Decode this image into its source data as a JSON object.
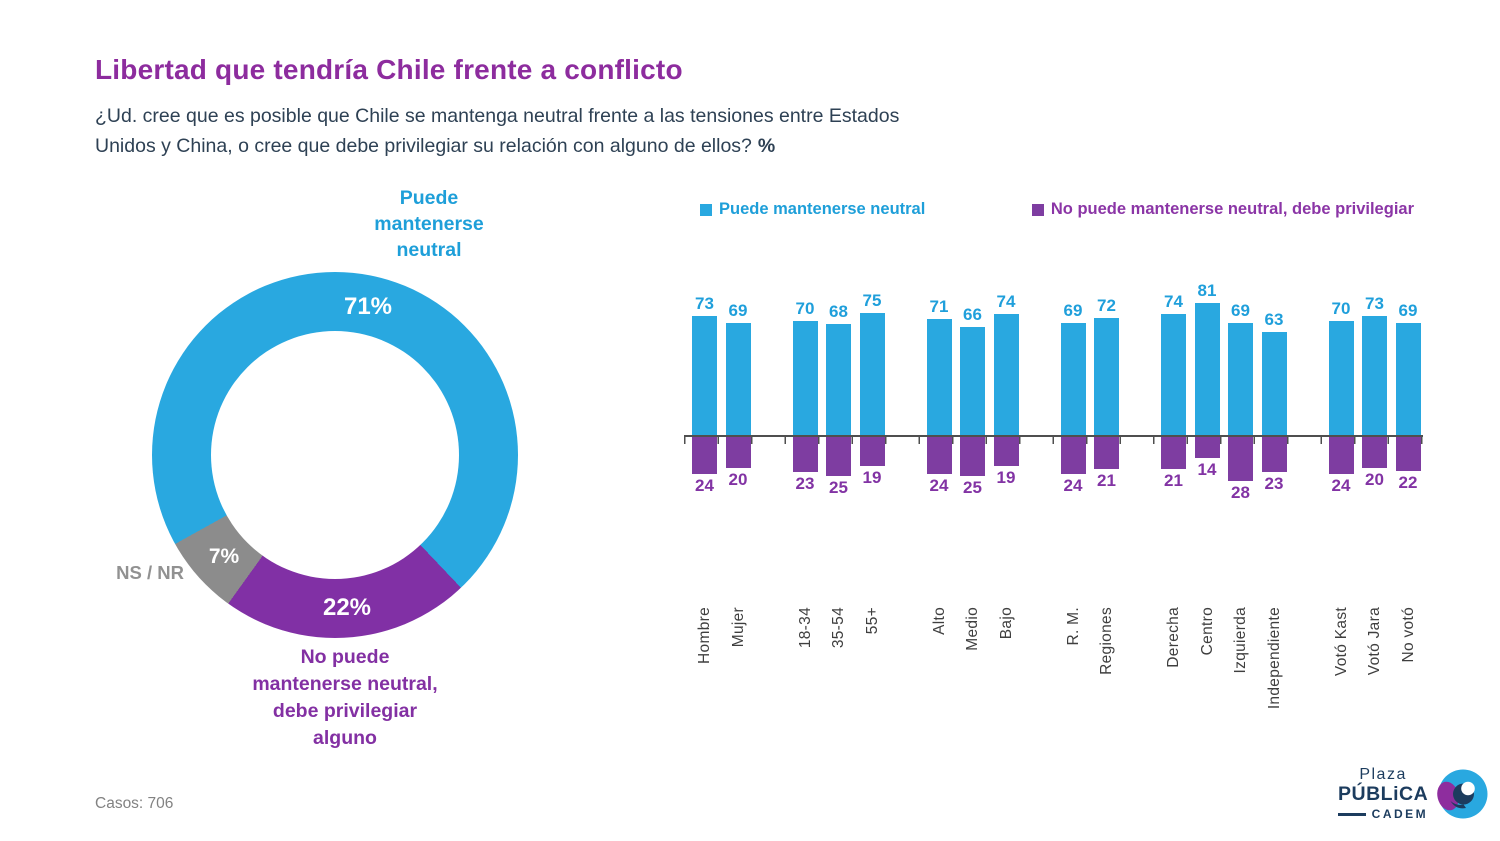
{
  "page": {
    "title": "Libertad que tendría Chile frente a conflicto",
    "subtitle": "¿Ud. cree que es posible que Chile se mantenga neutral frente a las tensiones entre Estados\nUnidos y China, o cree que debe privilegiar su relación con alguno de ellos?",
    "subtitle_suffix": "%",
    "casos": "Casos: 706"
  },
  "donut_display": {
    "label_top": "Puede\nmantenerse\nneutral",
    "label_bottom": "No puede\nmantenerse neutral,\ndebe privilegiar\nalguno",
    "label_nsnr": "NS / NR",
    "pct": [
      "71%",
      "22%",
      "7%"
    ]
  },
  "logo": {
    "plaza": "Plaza",
    "publica": "PÚBLiCA",
    "cadem": "CADEM"
  },
  "colors": {
    "blue": "#29A8E0",
    "bar_purple": "#7E3DA1",
    "donut_purple": "#8130A5",
    "gray": "#8C8C8C",
    "title_purple": "#8D2C9E",
    "navy": "#1C3C5E"
  },
  "chart_data": [
    {
      "type": "pie",
      "title": "Libertad que tendría Chile frente a conflicto",
      "labels": [
        "Puede mantenerse neutral",
        "No puede mantenerse neutral, debe privilegiar alguno",
        "NS / NR"
      ],
      "values": [
        71,
        22,
        7
      ],
      "colors": [
        "#29A8E0",
        "#8130A5",
        "#8C8C8C"
      ],
      "donut": true,
      "start_angle_deg": 136.5,
      "render_order": [
        1,
        2,
        0
      ],
      "unit": "%"
    },
    {
      "type": "bar",
      "subtype": "diverging-grouped",
      "unit": "%",
      "legend_position": "top",
      "category_groups": [
        [
          "Hombre",
          "Mujer"
        ],
        [
          "18-34",
          "35-54",
          "55+"
        ],
        [
          "Alto",
          "Medio",
          "Bajo"
        ],
        [
          "R. M.",
          "Regiones"
        ],
        [
          "Derecha",
          "Centro",
          "Izquierda",
          "Independiente"
        ],
        [
          "Votó Kast",
          "Votó Jara",
          "No votó"
        ]
      ],
      "series": [
        {
          "name": "Puede mantenerse neutral",
          "color": "#29A8E0",
          "direction": "up",
          "values": [
            [
              73,
              69
            ],
            [
              70,
              68,
              75
            ],
            [
              71,
              66,
              74
            ],
            [
              69,
              72
            ],
            [
              74,
              81,
              69,
              63
            ],
            [
              70,
              73,
              69
            ]
          ]
        },
        {
          "name": "No puede mantenerse neutral, debe privilegiar",
          "color": "#7E3DA1",
          "direction": "down",
          "values": [
            [
              24,
              20
            ],
            [
              23,
              25,
              19
            ],
            [
              24,
              25,
              19
            ],
            [
              24,
              21
            ],
            [
              21,
              14,
              28,
              23
            ],
            [
              24,
              20,
              22
            ]
          ]
        }
      ]
    }
  ]
}
